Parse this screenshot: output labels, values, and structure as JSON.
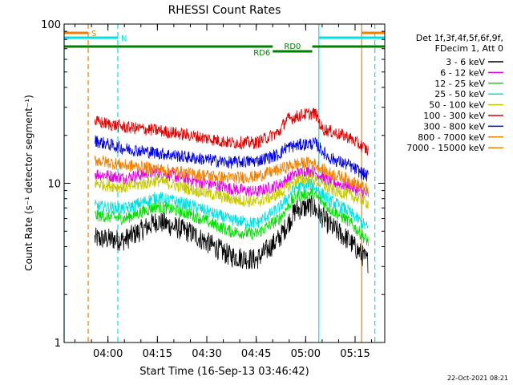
{
  "chart_data": {
    "type": "line",
    "title": "RHESSI Count Rates",
    "xlabel": "Start Time (16-Sep-13 03:46:42)",
    "ylabel": "Count Rate (s⁻¹ detector segment⁻¹)",
    "yscale": "log",
    "ylim": [
      1,
      100
    ],
    "xlim": [
      "03:46:42",
      "05:24:00"
    ],
    "x_ticks": [
      "04:00",
      "04:15",
      "04:30",
      "04:45",
      "05:00",
      "05:15"
    ],
    "y_ticks": [
      "1",
      "10",
      "100"
    ],
    "data_start": "03:56:00",
    "data_end": "05:19:00",
    "grid": false,
    "legend_position": "right",
    "legend_header": [
      "Det 1f,3f,4f,5f,6f,9f,",
      "FDecim 1, Att 0"
    ],
    "series": [
      {
        "name": "3 - 6 keV",
        "color": "#000000",
        "values": [
          {
            "t": "03:56:00",
            "y": 4.5
          },
          {
            "t": "04:05:00",
            "y": 4.4
          },
          {
            "t": "04:15:00",
            "y": 5.8
          },
          {
            "t": "04:25:00",
            "y": 4.9
          },
          {
            "t": "04:37:00",
            "y": 3.5
          },
          {
            "t": "04:45:00",
            "y": 3.3
          },
          {
            "t": "04:52:00",
            "y": 4.5
          },
          {
            "t": "04:57:00",
            "y": 6.8
          },
          {
            "t": "05:02:00",
            "y": 7.2
          },
          {
            "t": "05:07:00",
            "y": 5.5
          },
          {
            "t": "05:13:00",
            "y": 4.4
          },
          {
            "t": "05:19:00",
            "y": 3.2
          }
        ]
      },
      {
        "name": "6 - 12 keV",
        "color": "#e000e0",
        "values": [
          {
            "t": "03:56:00",
            "y": 11.5
          },
          {
            "t": "04:05:00",
            "y": 10.8
          },
          {
            "t": "04:15:00",
            "y": 11.8
          },
          {
            "t": "04:25:00",
            "y": 10.5
          },
          {
            "t": "04:37:00",
            "y": 9.3
          },
          {
            "t": "04:45:00",
            "y": 8.8
          },
          {
            "t": "04:52:00",
            "y": 9.8
          },
          {
            "t": "04:57:00",
            "y": 11.5
          },
          {
            "t": "05:02:00",
            "y": 12.0
          },
          {
            "t": "05:07:00",
            "y": 10.3
          },
          {
            "t": "05:13:00",
            "y": 9.6
          },
          {
            "t": "05:19:00",
            "y": 8.5
          }
        ]
      },
      {
        "name": "12 - 25 keV",
        "color": "#00e000",
        "values": [
          {
            "t": "03:56:00",
            "y": 6.3
          },
          {
            "t": "04:05:00",
            "y": 6.0
          },
          {
            "t": "04:15:00",
            "y": 7.2
          },
          {
            "t": "04:25:00",
            "y": 6.4
          },
          {
            "t": "04:37:00",
            "y": 5.0
          },
          {
            "t": "04:45:00",
            "y": 4.8
          },
          {
            "t": "04:52:00",
            "y": 6.0
          },
          {
            "t": "04:57:00",
            "y": 8.3
          },
          {
            "t": "05:02:00",
            "y": 8.7
          },
          {
            "t": "05:07:00",
            "y": 7.0
          },
          {
            "t": "05:13:00",
            "y": 5.8
          },
          {
            "t": "05:19:00",
            "y": 4.3
          }
        ]
      },
      {
        "name": "25 - 50 keV",
        "color": "#00e0e0",
        "values": [
          {
            "t": "03:56:00",
            "y": 7.2
          },
          {
            "t": "04:05:00",
            "y": 6.9
          },
          {
            "t": "04:15:00",
            "y": 8.2
          },
          {
            "t": "04:25:00",
            "y": 7.3
          },
          {
            "t": "04:37:00",
            "y": 5.9
          },
          {
            "t": "04:45:00",
            "y": 5.6
          },
          {
            "t": "04:52:00",
            "y": 7.0
          },
          {
            "t": "04:57:00",
            "y": 9.4
          },
          {
            "t": "05:02:00",
            "y": 9.8
          },
          {
            "t": "05:07:00",
            "y": 7.9
          },
          {
            "t": "05:13:00",
            "y": 6.7
          },
          {
            "t": "05:19:00",
            "y": 5.2
          }
        ]
      },
      {
        "name": "50 - 100 keV",
        "color": "#c8c800",
        "values": [
          {
            "t": "03:56:00",
            "y": 10.0
          },
          {
            "t": "04:05:00",
            "y": 9.4
          },
          {
            "t": "04:15:00",
            "y": 10.4
          },
          {
            "t": "04:25:00",
            "y": 9.2
          },
          {
            "t": "04:37:00",
            "y": 8.0
          },
          {
            "t": "04:45:00",
            "y": 7.6
          },
          {
            "t": "04:52:00",
            "y": 8.6
          },
          {
            "t": "04:57:00",
            "y": 10.4
          },
          {
            "t": "05:02:00",
            "y": 10.8
          },
          {
            "t": "05:07:00",
            "y": 9.2
          },
          {
            "t": "05:13:00",
            "y": 8.5
          },
          {
            "t": "05:19:00",
            "y": 7.5
          }
        ]
      },
      {
        "name": "100 - 300 keV",
        "color": "#e00000",
        "values": [
          {
            "t": "03:56:00",
            "y": 24.5
          },
          {
            "t": "04:05:00",
            "y": 22.5
          },
          {
            "t": "04:15:00",
            "y": 21.5
          },
          {
            "t": "04:25:00",
            "y": 20.0
          },
          {
            "t": "04:37:00",
            "y": 18.0
          },
          {
            "t": "04:45:00",
            "y": 18.0
          },
          {
            "t": "04:52:00",
            "y": 21.0
          },
          {
            "t": "04:54:00",
            "y": 25.0
          },
          {
            "t": "04:59:00",
            "y": 27.0
          },
          {
            "t": "05:03:00",
            "y": 27.5
          },
          {
            "t": "05:05:00",
            "y": 22.0
          },
          {
            "t": "05:13:00",
            "y": 19.5
          },
          {
            "t": "05:19:00",
            "y": 16.0
          }
        ]
      },
      {
        "name": "300 - 800 keV",
        "color": "#0000e0",
        "values": [
          {
            "t": "03:56:00",
            "y": 18.5
          },
          {
            "t": "04:05:00",
            "y": 16.5
          },
          {
            "t": "04:15:00",
            "y": 15.5
          },
          {
            "t": "04:25:00",
            "y": 14.5
          },
          {
            "t": "04:37:00",
            "y": 13.5
          },
          {
            "t": "04:45:00",
            "y": 13.8
          },
          {
            "t": "04:52:00",
            "y": 15.2
          },
          {
            "t": "04:54:00",
            "y": 16.8
          },
          {
            "t": "04:59:00",
            "y": 17.5
          },
          {
            "t": "05:03:00",
            "y": 17.8
          },
          {
            "t": "05:07:00",
            "y": 14.5
          },
          {
            "t": "05:13:00",
            "y": 13.0
          },
          {
            "t": "05:19:00",
            "y": 11.0
          }
        ]
      },
      {
        "name": "800 - 7000 keV",
        "color": "#f08000",
        "values": [
          {
            "t": "03:56:00",
            "y": 14.0
          },
          {
            "t": "04:05:00",
            "y": 13.0
          },
          {
            "t": "04:15:00",
            "y": 12.3
          },
          {
            "t": "04:25:00",
            "y": 11.5
          },
          {
            "t": "04:37:00",
            "y": 10.8
          },
          {
            "t": "04:45:00",
            "y": 11.0
          },
          {
            "t": "04:52:00",
            "y": 12.2
          },
          {
            "t": "04:57:00",
            "y": 13.2
          },
          {
            "t": "05:02:00",
            "y": 13.5
          },
          {
            "t": "05:07:00",
            "y": 11.6
          },
          {
            "t": "05:13:00",
            "y": 10.6
          },
          {
            "t": "05:19:00",
            "y": 9.0
          }
        ]
      },
      {
        "name": "7000 - 15000 keV",
        "color": "#f08000",
        "values": []
      }
    ],
    "annotations": [
      {
        "label": "S",
        "color": "#f08000",
        "start": "03:46:42",
        "end": "03:54:00"
      },
      {
        "label": "N",
        "color": "#00e0e0",
        "start": "03:46:42",
        "end": "04:03:00"
      },
      {
        "label": "",
        "color": "#00e0e0",
        "start": "05:04:00",
        "end": "05:24:00"
      },
      {
        "label": "",
        "color": "#f08000",
        "start": "05:17:00",
        "end": "05:24:00"
      },
      {
        "label": "",
        "color": "#008000",
        "start": "03:46:42",
        "end": "04:50:00"
      },
      {
        "label": "RD6",
        "color": "#008000",
        "start": "04:50:00",
        "end": "05:02:00"
      },
      {
        "label": "RD0",
        "color": "#008000",
        "start": "04:50:00",
        "end": "05:02:00"
      },
      {
        "label": "",
        "color": "#008000",
        "start": "05:02:00",
        "end": "05:24:00"
      }
    ],
    "vertical_markers": [
      {
        "t": "03:46:42",
        "color": "#00e0e0",
        "style": "solid"
      },
      {
        "t": "03:54:00",
        "color": "#f08000",
        "style": "dashed"
      },
      {
        "t": "04:03:00",
        "color": "#00e0e0",
        "style": "dashed"
      },
      {
        "t": "05:04:00",
        "color": "#00e0e0",
        "style": "solid"
      },
      {
        "t": "05:17:00",
        "color": "#f08000",
        "style": "solid"
      },
      {
        "t": "05:21:00",
        "color": "#00e0e0",
        "style": "dashed"
      }
    ],
    "footer_date": "22-Oct-2021 08:21"
  }
}
